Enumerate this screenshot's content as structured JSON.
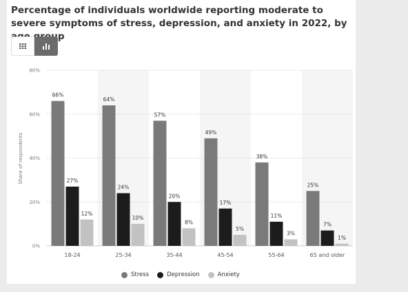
{
  "title": "Percentage of individuals worldwide reporting moderate to severe symptoms of stress, depression, and anxiety in 2022, by age group",
  "view_toggle": {
    "table_icon": "table-icon",
    "chart_icon": "bar-chart-icon",
    "selected": "chart"
  },
  "chart_data": {
    "type": "bar",
    "title": "Percentage of individuals worldwide reporting moderate to severe symptoms of stress, depression, and anxiety in 2022, by age group",
    "xlabel": "",
    "ylabel": "Share of respondents",
    "categories": [
      "18-24",
      "25-34",
      "35-44",
      "45-54",
      "55-64",
      "65 and older"
    ],
    "series": [
      {
        "name": "Stress",
        "values": [
          66,
          64,
          57,
          49,
          38,
          25
        ],
        "color": "#7a7a7a"
      },
      {
        "name": "Depression",
        "values": [
          27,
          24,
          20,
          17,
          11,
          7
        ],
        "color": "#1c1c1c"
      },
      {
        "name": "Anxiety",
        "values": [
          12,
          10,
          8,
          5,
          3,
          1
        ],
        "color": "#c2c2c2"
      }
    ],
    "ylim": [
      0,
      80
    ],
    "yticks": [
      0,
      20,
      40,
      60,
      80
    ],
    "ytick_labels": [
      "0%",
      "20%",
      "40%",
      "60%",
      "80%"
    ],
    "value_suffix": "%",
    "grid": true,
    "alternating_bands": true,
    "legend_position": "bottom"
  }
}
